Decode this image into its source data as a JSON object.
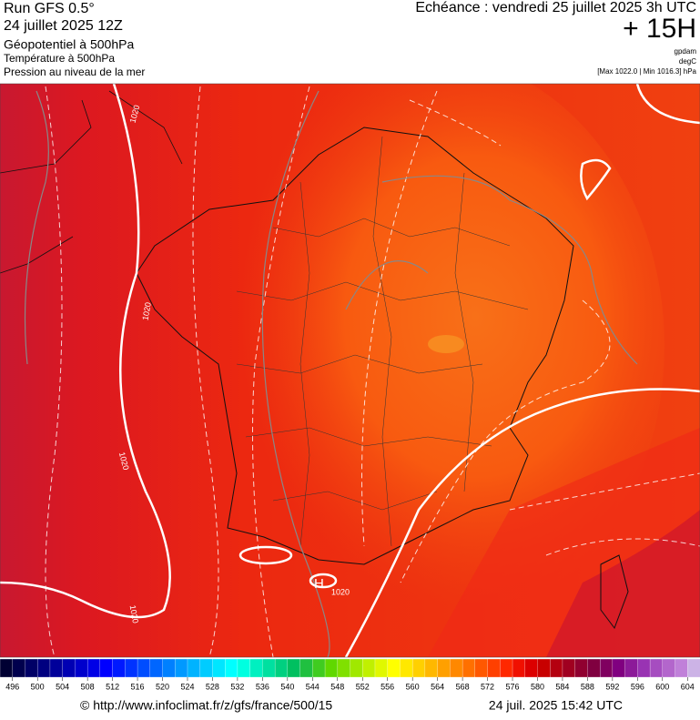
{
  "header": {
    "run": "Run GFS 0.5°",
    "date": "24 juillet 2025 12Z",
    "field1": "Géopotentiel à 500hPa",
    "field2": "Température à 500hPa",
    "field3": "Pression au niveau de la mer",
    "echeance": "Echéance : vendredi 25 juillet 2025 3h UTC",
    "lead": "+ 15H",
    "unit1": "gpdam",
    "unit2": "degC",
    "range": "[Max 1022.0 | Min 1016.3] hPa"
  },
  "contour_labels": [
    "1020",
    "1020",
    "1020",
    "1020",
    "H",
    "1020"
  ],
  "colorbar": {
    "labels": [
      "496",
      "500",
      "504",
      "508",
      "512",
      "516",
      "520",
      "524",
      "528",
      "532",
      "536",
      "540",
      "544",
      "548",
      "552",
      "556",
      "560",
      "564",
      "568",
      "572",
      "576",
      "580",
      "584",
      "588",
      "592",
      "596",
      "600",
      "604"
    ],
    "colors": [
      "#000033",
      "#00004d",
      "#000066",
      "#000080",
      "#00009a",
      "#0000b3",
      "#0000cc",
      "#0000e6",
      "#0000ff",
      "#0019ff",
      "#0033ff",
      "#004dff",
      "#0066ff",
      "#0080ff",
      "#0099ff",
      "#00b3ff",
      "#00ccff",
      "#00e6ff",
      "#00ffff",
      "#00ffe0",
      "#00f0c0",
      "#00e0a0",
      "#00d080",
      "#00c060",
      "#20c040",
      "#40cc20",
      "#60d800",
      "#80e000",
      "#a0e800",
      "#c0f000",
      "#e0f800",
      "#ffff00",
      "#ffe800",
      "#ffd000",
      "#ffb800",
      "#ffa000",
      "#ff8800",
      "#ff7000",
      "#ff5800",
      "#ff4000",
      "#ff2800",
      "#f01000",
      "#dc0000",
      "#c80000",
      "#b40010",
      "#a00020",
      "#900030",
      "#800040",
      "#800060",
      "#800080",
      "#8c1a99",
      "#9933b3",
      "#a64dc0",
      "#b366cc",
      "#c080d9",
      "#ccb3e6"
    ]
  },
  "footer": {
    "url": "© http://www.infoclimat.fr/z/gfs/france/500/15",
    "generated": "24 juil. 2025 15:42 UTC"
  }
}
